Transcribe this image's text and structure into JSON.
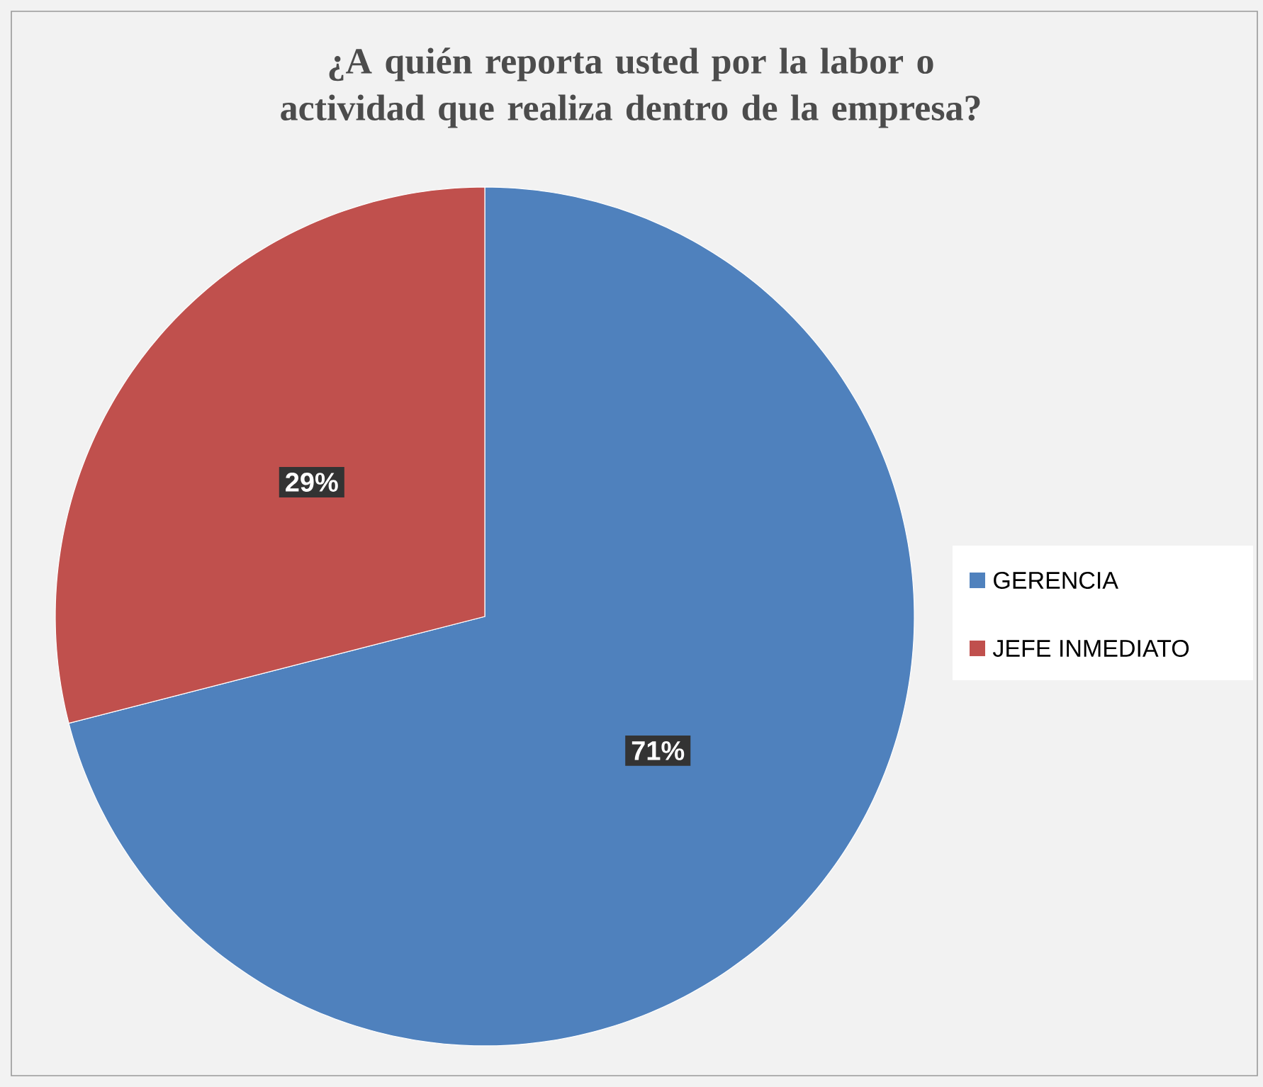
{
  "chart_data": {
    "type": "pie",
    "title": "¿A quién reporta usted por la labor o actividad que realiza dentro de la empresa?",
    "categories": [
      "GERENCIA",
      "JEFE INMEDIATO"
    ],
    "values": [
      71,
      29
    ],
    "colors": [
      "#4f81bd",
      "#c0504d"
    ],
    "value_labels": [
      "71%",
      "29%"
    ],
    "legend": "right"
  }
}
